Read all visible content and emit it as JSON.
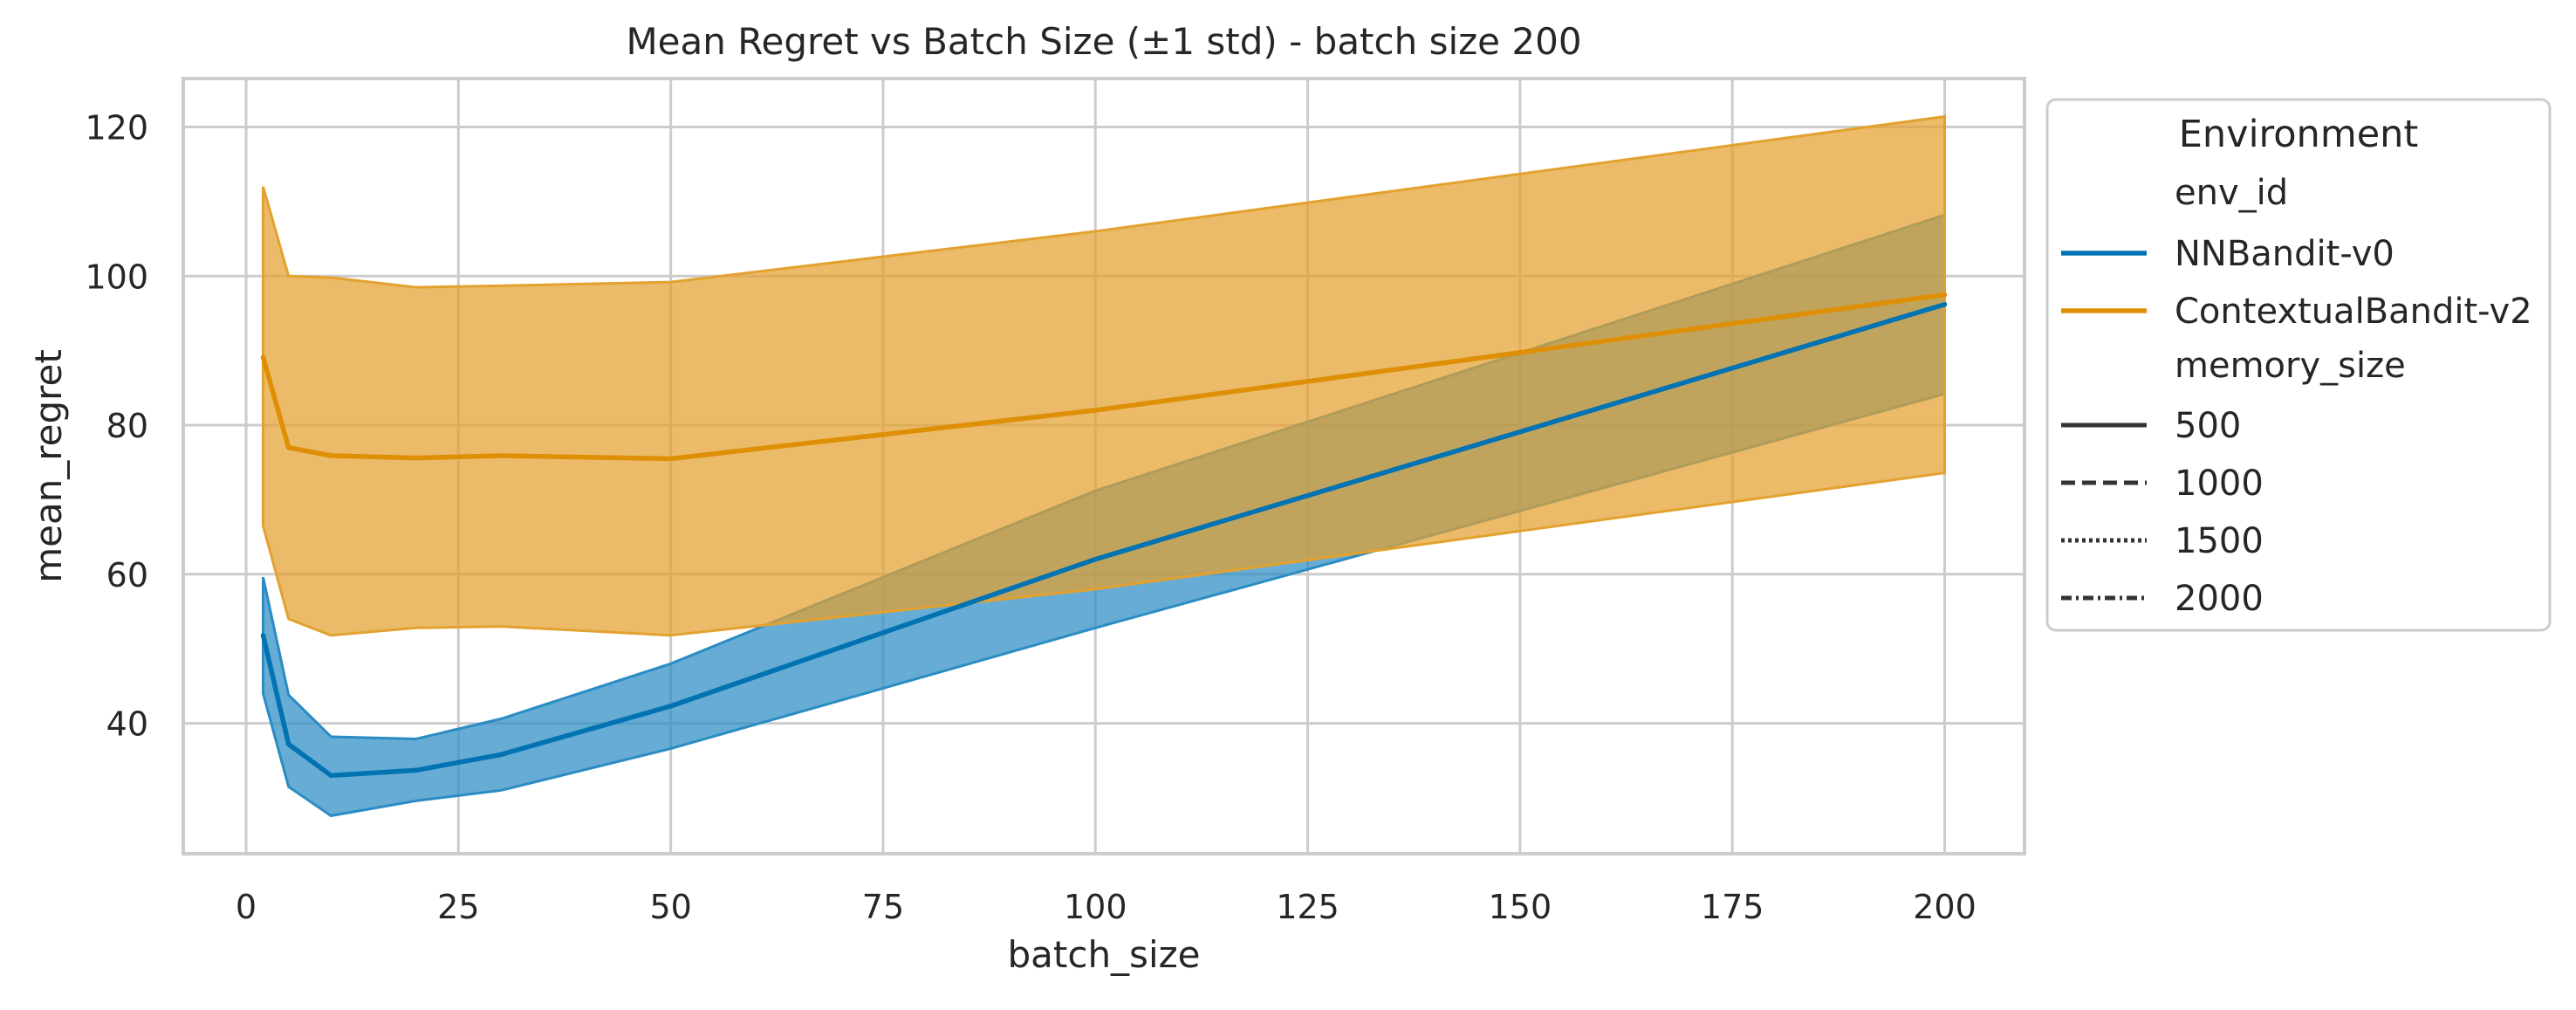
{
  "chart_data": {
    "type": "line",
    "title": "Mean Regret vs Batch Size (±1 std) - batch size 200",
    "xlabel": "batch_size",
    "ylabel": "mean_regret",
    "xlim": [
      -7.4,
      209.4
    ],
    "ylim": [
      22.5,
      126.5
    ],
    "xticks": [
      0,
      25,
      50,
      75,
      100,
      125,
      150,
      175,
      200
    ],
    "yticks": [
      40,
      60,
      80,
      100,
      120
    ],
    "grid": true,
    "legend": {
      "placement": "outside-right",
      "title": "Environment",
      "hue_header": "env_id",
      "style_header": "memory_size",
      "style_entries": [
        {
          "label": "500",
          "dash": "solid"
        },
        {
          "label": "1000",
          "dash": "dashed"
        },
        {
          "label": "1500",
          "dash": "dotted"
        },
        {
          "label": "2000",
          "dash": "dashdot"
        }
      ]
    },
    "series": [
      {
        "name": "NNBandit-v0",
        "color": "#0173b2",
        "band_color": "#2b8cc4",
        "x": [
          2,
          5,
          10,
          20,
          30,
          50,
          100,
          200
        ],
        "values": [
          51.8,
          37.2,
          33.0,
          33.7,
          35.8,
          42.3,
          62.0,
          96.2
        ],
        "lower": [
          44.0,
          31.5,
          27.6,
          29.6,
          31.0,
          36.6,
          52.8,
          84.2
        ],
        "upper": [
          59.6,
          43.8,
          38.2,
          37.9,
          40.6,
          48.0,
          71.2,
          108.2
        ]
      },
      {
        "name": "ContextualBandit-v2",
        "color": "#de8f05",
        "band_color": "#e3a12f",
        "x": [
          2,
          5,
          10,
          20,
          30,
          50,
          100,
          200
        ],
        "values": [
          89.1,
          77.0,
          75.9,
          75.6,
          75.9,
          75.5,
          82.0,
          97.5
        ],
        "lower": [
          66.5,
          54.0,
          51.8,
          52.8,
          53.0,
          51.8,
          58.0,
          73.6
        ],
        "upper": [
          112.0,
          100.0,
          99.8,
          98.5,
          98.7,
          99.2,
          106.0,
          121.4
        ]
      }
    ]
  }
}
